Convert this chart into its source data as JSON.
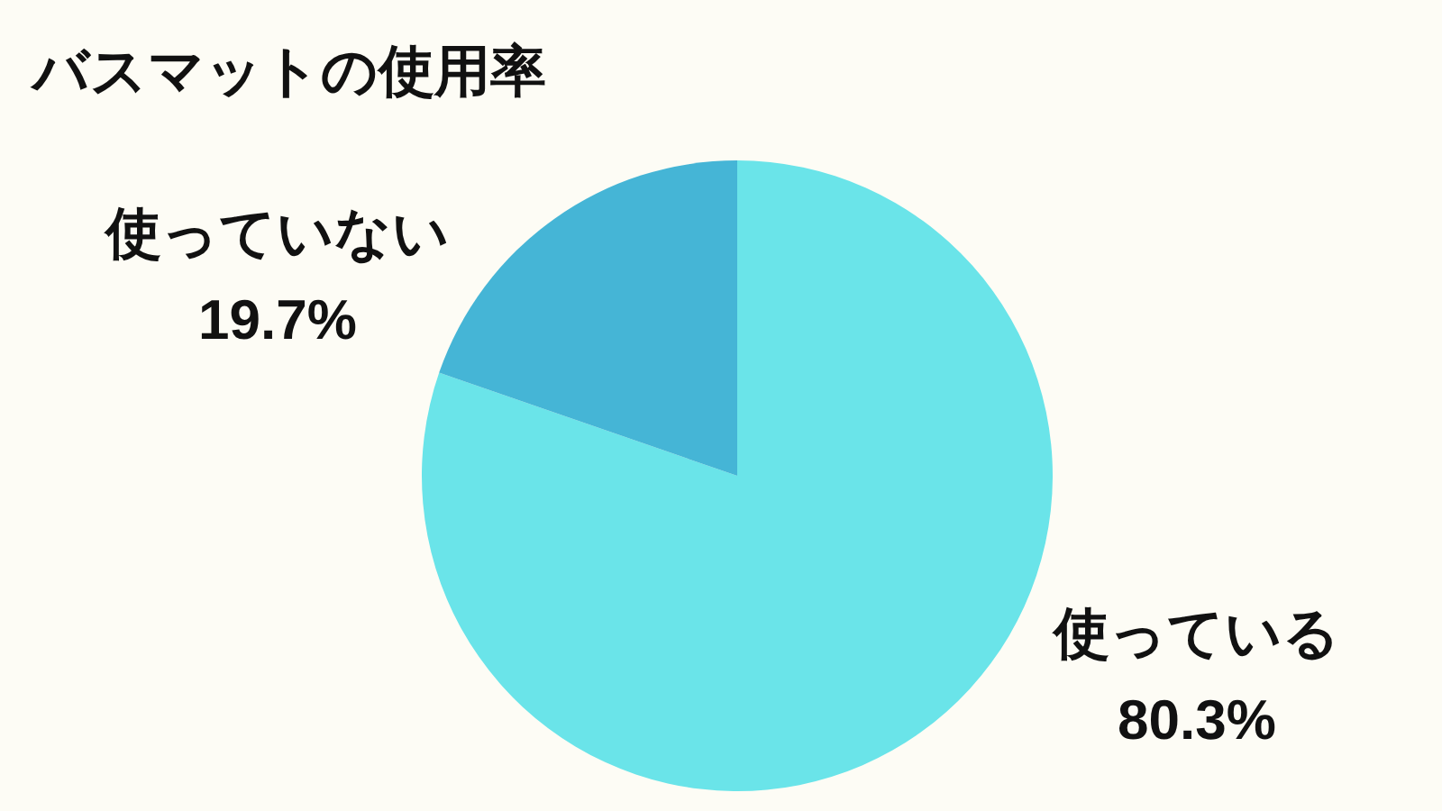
{
  "chart_data": {
    "type": "pie",
    "title": "バスマットの使用率",
    "categories": [
      "使っている",
      "使っていない"
    ],
    "values": [
      80.3,
      19.7
    ],
    "colors": [
      "#6ae4e9",
      "#45b5d6"
    ],
    "value_labels": [
      "80.3%",
      "19.7%"
    ]
  }
}
